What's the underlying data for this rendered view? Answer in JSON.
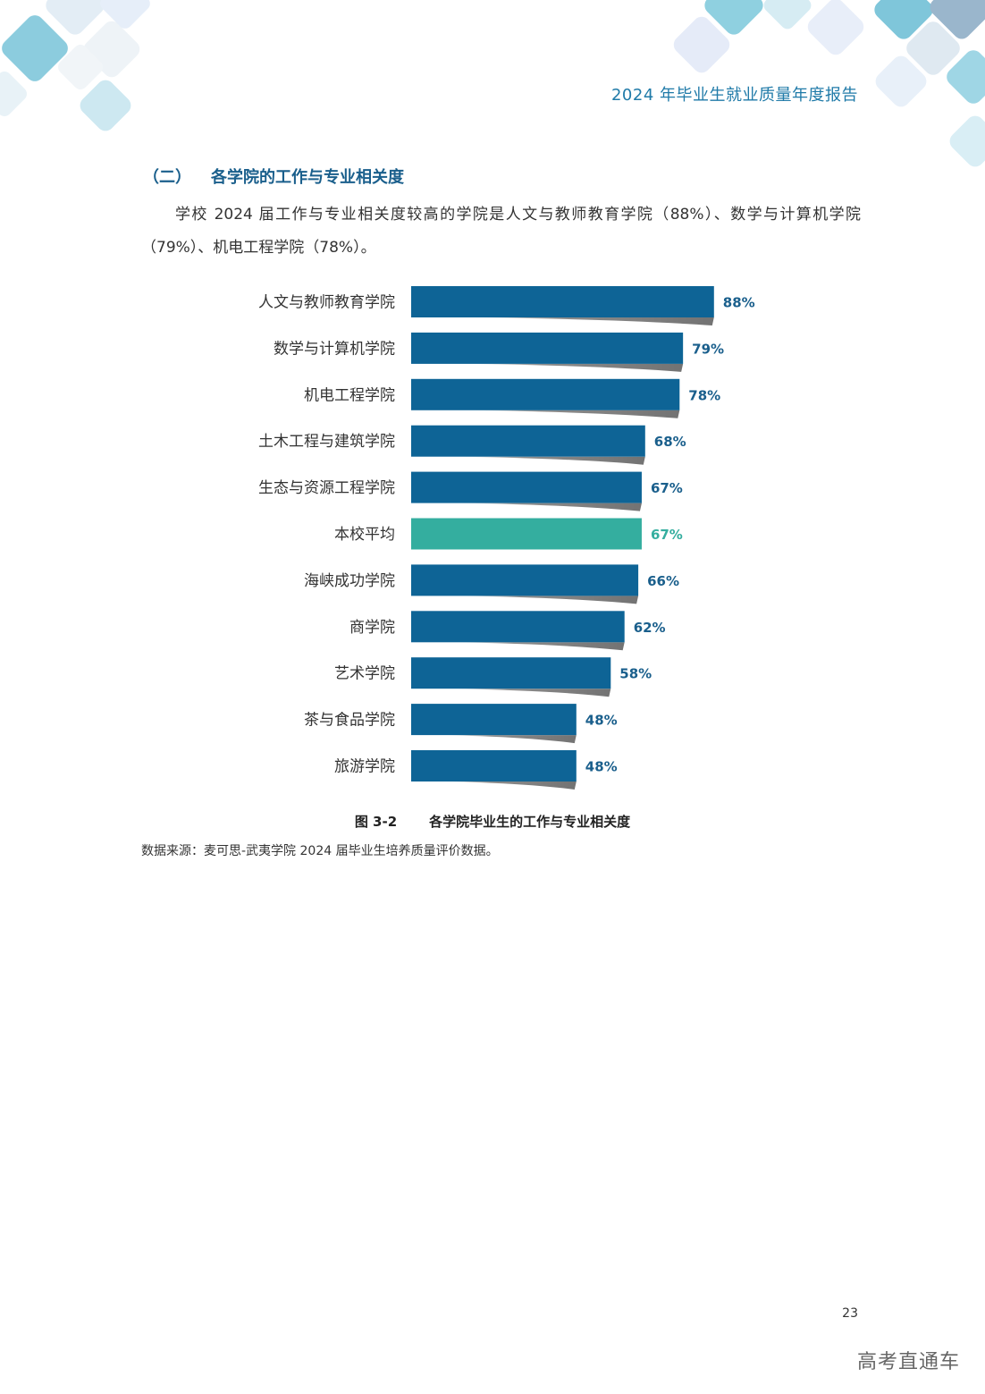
{
  "header": {
    "title": "2024 年毕业生就业质量年度报告"
  },
  "section": {
    "number": "（二）",
    "heading": "各学院的工作与专业相关度",
    "paragraph": "学校 2024 届工作与专业相关度较高的学院是人文与教师教育学院（88%）、数学与计算机学院（79%）、机电工程学院（78%）。"
  },
  "chart_data": {
    "type": "bar",
    "orientation": "horizontal",
    "categories": [
      "人文与教师教育学院",
      "数学与计算机学院",
      "机电工程学院",
      "土木工程与建筑学院",
      "生态与资源工程学院",
      "本校平均",
      "海峡成功学院",
      "商学院",
      "艺术学院",
      "茶与食品学院",
      "旅游学院"
    ],
    "values": [
      88,
      79,
      78,
      68,
      67,
      67,
      66,
      62,
      58,
      48,
      48
    ],
    "value_labels": [
      "88%",
      "79%",
      "78%",
      "68%",
      "67%",
      "67%",
      "66%",
      "62%",
      "58%",
      "48%",
      "48%"
    ],
    "unit": "%",
    "highlight_category": "本校平均",
    "colors": {
      "bar": "#0e6496",
      "highlight": "#34ae9f",
      "label": "#1a5f8c"
    },
    "grid": false,
    "legend": "none"
  },
  "caption": {
    "figure_no": "图 3-2",
    "text": "各学院毕业生的工作与专业相关度"
  },
  "source": "数据来源：麦可思-武夷学院 2024 届毕业生培养质量评价数据。",
  "page_number": "23",
  "watermark": "高考直通车"
}
